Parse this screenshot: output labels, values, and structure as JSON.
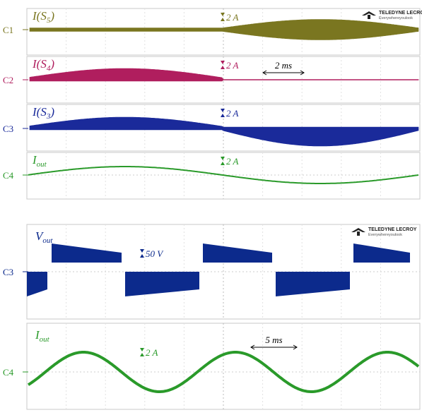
{
  "top_scope": {
    "logo": {
      "brand": "TELEDYNE LECROY",
      "tagline": "Everywhereyoulook"
    },
    "time_scale": "2 ms",
    "channels": [
      {
        "id": "C1",
        "label": {
          "main": "I(S",
          "sub": "5",
          "tail": ")"
        },
        "scale": "2 A"
      },
      {
        "id": "C2",
        "label": {
          "main": "I(S",
          "sub": "4",
          "tail": ")"
        },
        "scale": "2 A"
      },
      {
        "id": "C3",
        "label": {
          "main": "I(S",
          "sub": "3",
          "tail": ")"
        },
        "scale": "2 A"
      },
      {
        "id": "C4",
        "label": {
          "main": "I",
          "sub": "out",
          "tail": ""
        },
        "scale": "2 A"
      }
    ]
  },
  "bottom_scope": {
    "logo": {
      "brand": "TELEDYNE LECROY",
      "tagline": "Everywhereyoulook"
    },
    "time_scale": "5 ms",
    "channels": [
      {
        "id": "C3",
        "label": {
          "main": "V",
          "sub": "out",
          "tail": ""
        },
        "scale": "50 V"
      },
      {
        "id": "C4",
        "label": {
          "main": "I",
          "sub": "out",
          "tail": ""
        },
        "scale": "2 A"
      }
    ]
  }
}
